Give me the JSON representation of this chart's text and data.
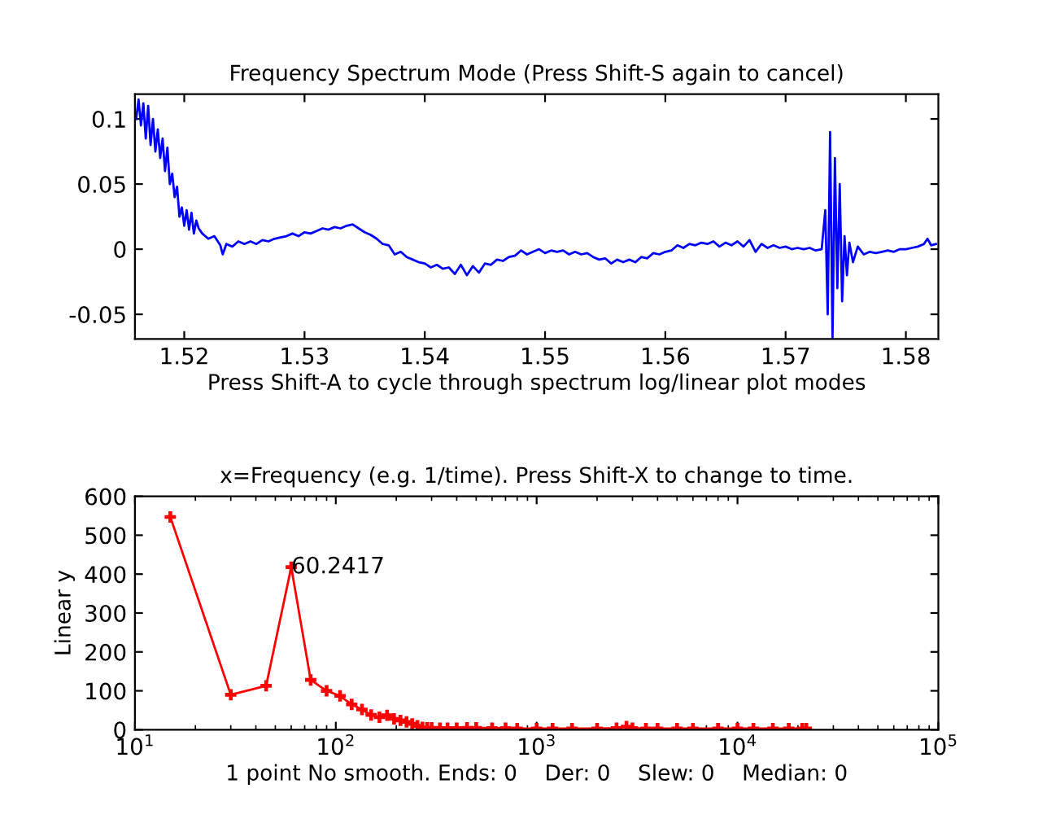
{
  "chart_data": [
    {
      "type": "line",
      "title": "Frequency Spectrum Mode (Press Shift-S again to cancel)",
      "xlabel": "Press Shift-A to cycle through spectrum log/linear plot modes",
      "xlim": [
        1.5159,
        1.5827
      ],
      "ylim": [
        -0.069,
        0.119
      ],
      "xticks": [
        1.52,
        1.53,
        1.54,
        1.55,
        1.56,
        1.57,
        1.58
      ],
      "yticks": [
        -0.05,
        0,
        0.05,
        0.1
      ],
      "grid": false,
      "legend": false,
      "series": [
        {
          "color": "#0000ff",
          "x": [
            1.516,
            1.5162,
            1.5164,
            1.5166,
            1.5168,
            1.517,
            1.5172,
            1.5174,
            1.5176,
            1.5178,
            1.518,
            1.5182,
            1.5184,
            1.5186,
            1.5188,
            1.519,
            1.5192,
            1.5194,
            1.5196,
            1.5198,
            1.52,
            1.5202,
            1.5204,
            1.5206,
            1.5208,
            1.521,
            1.5212,
            1.5215,
            1.522,
            1.5225,
            1.523,
            1.5232,
            1.5235,
            1.524,
            1.5245,
            1.525,
            1.5255,
            1.526,
            1.5265,
            1.527,
            1.5275,
            1.528,
            1.5285,
            1.529,
            1.5295,
            1.53,
            1.5305,
            1.531,
            1.5315,
            1.532,
            1.5325,
            1.533,
            1.5335,
            1.534,
            1.5345,
            1.535,
            1.5355,
            1.536,
            1.5365,
            1.537,
            1.5375,
            1.538,
            1.5385,
            1.539,
            1.5395,
            1.54,
            1.5405,
            1.541,
            1.5415,
            1.542,
            1.5425,
            1.543,
            1.5435,
            1.544,
            1.5445,
            1.545,
            1.5455,
            1.546,
            1.5465,
            1.547,
            1.5475,
            1.548,
            1.5485,
            1.549,
            1.5495,
            1.55,
            1.5505,
            1.551,
            1.5515,
            1.552,
            1.5525,
            1.553,
            1.5535,
            1.554,
            1.5545,
            1.555,
            1.5555,
            1.556,
            1.5565,
            1.557,
            1.5575,
            1.558,
            1.5585,
            1.559,
            1.5595,
            1.56,
            1.5605,
            1.561,
            1.5615,
            1.562,
            1.5625,
            1.563,
            1.5635,
            1.564,
            1.5645,
            1.565,
            1.5655,
            1.566,
            1.5665,
            1.567,
            1.5675,
            1.568,
            1.5685,
            1.569,
            1.5695,
            1.57,
            1.5705,
            1.571,
            1.5715,
            1.572,
            1.5725,
            1.573,
            1.5733,
            1.5735,
            1.5737,
            1.5739,
            1.5741,
            1.5743,
            1.5745,
            1.5747,
            1.5749,
            1.5751,
            1.5753,
            1.5756,
            1.576,
            1.5765,
            1.577,
            1.5775,
            1.578,
            1.5785,
            1.579,
            1.5795,
            1.58,
            1.5805,
            1.581,
            1.5815,
            1.5818,
            1.5821,
            1.5825
          ],
          "values": [
            0.1,
            0.115,
            0.095,
            0.112,
            0.085,
            0.11,
            0.08,
            0.1,
            0.075,
            0.092,
            0.07,
            0.085,
            0.06,
            0.078,
            0.05,
            0.058,
            0.04,
            0.048,
            0.025,
            0.032,
            0.018,
            0.03,
            0.015,
            0.028,
            0.012,
            0.022,
            0.016,
            0.012,
            0.008,
            0.01,
            0.003,
            -0.004,
            0.004,
            0.002,
            0.006,
            0.004,
            0.006,
            0.004,
            0.007,
            0.006,
            0.008,
            0.009,
            0.01,
            0.012,
            0.01,
            0.013,
            0.012,
            0.014,
            0.016,
            0.015,
            0.017,
            0.016,
            0.018,
            0.019,
            0.016,
            0.013,
            0.011,
            0.008,
            0.004,
            0.003,
            -0.004,
            -0.002,
            -0.006,
            -0.008,
            -0.01,
            -0.011,
            -0.014,
            -0.012,
            -0.015,
            -0.014,
            -0.019,
            -0.012,
            -0.02,
            -0.013,
            -0.018,
            -0.011,
            -0.012,
            -0.008,
            -0.009,
            -0.006,
            -0.005,
            -0.001,
            -0.004,
            -0.002,
            0.0,
            -0.003,
            -0.001,
            -0.002,
            -0.001,
            -0.004,
            -0.002,
            -0.004,
            -0.003,
            -0.006,
            -0.008,
            -0.007,
            -0.011,
            -0.008,
            -0.01,
            -0.008,
            -0.01,
            -0.006,
            -0.007,
            -0.003,
            -0.004,
            -0.002,
            -0.001,
            0.003,
            0.001,
            0.004,
            0.003,
            0.005,
            0.004,
            0.006,
            0.002,
            0.005,
            0.003,
            0.006,
            0.002,
            0.007,
            -0.002,
            0.004,
            0.001,
            0.003,
            0.001,
            0.002,
            0.0,
            0.001,
            0.0,
            0.001,
            -0.001,
            0.0,
            0.03,
            -0.05,
            0.09,
            -0.068,
            0.07,
            -0.03,
            0.05,
            -0.04,
            0.01,
            -0.02,
            0.005,
            -0.01,
            0.002,
            -0.004,
            -0.002,
            -0.003,
            -0.002,
            -0.001,
            -0.002,
            0.0,
            0.0,
            0.001,
            0.002,
            0.004,
            0.008,
            0.003,
            0.004
          ]
        }
      ]
    },
    {
      "type": "line",
      "title": "x=Frequency (e.g. 1/time). Press Shift-X to change to time.",
      "xlabel": "1 point No smooth. Ends: 0    Der: 0    Slew: 0    Median: 0",
      "ylabel": "Linear y",
      "log": "x",
      "xlim": [
        10,
        100000
      ],
      "ylim": [
        0,
        600
      ],
      "xticks": [
        {
          "value": 10,
          "label": "10$^{1}$"
        },
        {
          "value": 100,
          "label": "10$^{2}$"
        },
        {
          "value": 1000,
          "label": "10$^{3}$"
        },
        {
          "value": 10000,
          "label": "10$^{4}$"
        },
        {
          "value": 100000,
          "label": "10$^{5}$"
        }
      ],
      "yticks": [
        0,
        100,
        200,
        300,
        400,
        500,
        600
      ],
      "grid": false,
      "legend": false,
      "marker": "cross",
      "line_style": "solid",
      "annotations": [
        {
          "text": "60.2417",
          "x": 60,
          "y": 418
        }
      ],
      "series": [
        {
          "color": "#ff0000",
          "x": [
            15,
            30,
            45,
            60,
            75,
            90,
            105,
            120,
            135,
            150,
            165,
            180,
            195,
            210,
            225,
            240,
            255,
            270,
            285,
            300,
            330,
            360,
            400,
            450,
            500,
            600,
            700,
            800,
            1000,
            1200,
            1500,
            2000,
            2500,
            2800,
            3000,
            3500,
            4000,
            5000,
            6000,
            8000,
            10000,
            12000,
            15000,
            18000,
            21000,
            22000
          ],
          "values": [
            547,
            90,
            113,
            418,
            128,
            100,
            87,
            65,
            52,
            38,
            32,
            37,
            28,
            24,
            20,
            15,
            10,
            6,
            5,
            5,
            4,
            4,
            4,
            5,
            5,
            4,
            4,
            3,
            3,
            3,
            3,
            3,
            4,
            8,
            4,
            3,
            3,
            3,
            3,
            3,
            3,
            3,
            3,
            3,
            3,
            3
          ]
        }
      ]
    }
  ]
}
